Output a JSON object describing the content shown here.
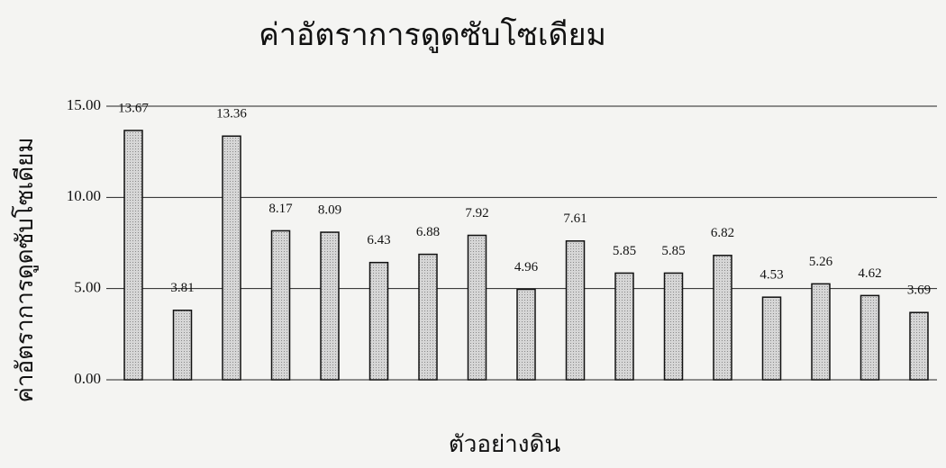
{
  "chart_data": {
    "type": "bar",
    "title": "ค่าอัตราการดูดซับโซเดียม",
    "x_label": "ตัวอย่างดิน",
    "y_label": "ค่าอัตราการดูดซับโซเดียม",
    "categories": [
      null,
      null,
      null,
      null,
      null,
      null,
      null,
      null,
      null,
      null,
      null,
      null,
      null,
      null,
      null,
      null,
      null
    ],
    "values": [
      13.67,
      3.81,
      13.36,
      8.17,
      8.09,
      6.43,
      6.88,
      7.92,
      4.96,
      7.61,
      5.85,
      5.85,
      6.82,
      4.53,
      5.26,
      4.62,
      3.69
    ],
    "color": "#c8c8c8",
    "ylim": [
      0,
      15
    ],
    "yticks": [
      {
        "value": 0,
        "label": "0.00"
      },
      {
        "value": 5,
        "label": "5.00"
      },
      {
        "value": 10,
        "label": "10.00"
      },
      {
        "value": 15,
        "label": "15.00"
      }
    ],
    "grid": true
  }
}
